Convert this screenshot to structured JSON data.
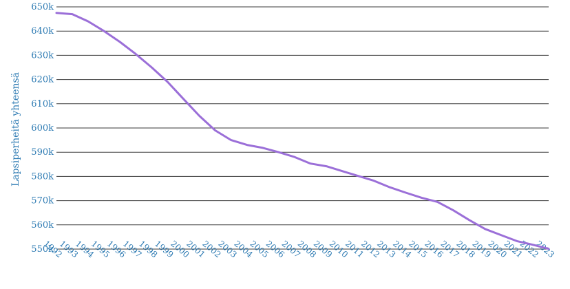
{
  "chart_data": {
    "type": "line",
    "title": "",
    "xlabel": "",
    "ylabel": "Lapsiperheitä yhteensä",
    "x": [
      1992,
      1993,
      1994,
      1995,
      1996,
      1997,
      1998,
      1999,
      2000,
      2001,
      2002,
      2003,
      2004,
      2005,
      2006,
      2007,
      2008,
      2009,
      2010,
      2011,
      2012,
      2013,
      2014,
      2015,
      2016,
      2017,
      2018,
      2019,
      2020,
      2021,
      2022,
      2023
    ],
    "series": [
      {
        "name": "",
        "color": "#9b6fd8",
        "values": [
          647500,
          647000,
          644000,
          640000,
          635500,
          630500,
          625000,
          619000,
          612000,
          605000,
          599000,
          595000,
          593000,
          591800,
          590000,
          588000,
          585300,
          584200,
          582200,
          580200,
          578200,
          575500,
          573300,
          571200,
          569500,
          566000,
          562000,
          558300,
          555800,
          553300,
          551800,
          550100
        ]
      }
    ],
    "ylim": [
      550000,
      650000
    ],
    "yticks": [
      550000,
      560000,
      570000,
      580000,
      590000,
      600000,
      610000,
      620000,
      630000,
      640000,
      650000
    ],
    "ytick_labels": [
      "550k",
      "560k",
      "570k",
      "580k",
      "590k",
      "600k",
      "610k",
      "620k",
      "630k",
      "640k",
      "650k"
    ],
    "xtick_labels": [
      "1992",
      "1993",
      "1994",
      "1995",
      "1996",
      "1997",
      "1998",
      "1999",
      "2000",
      "2001",
      "2002",
      "2003",
      "2004",
      "2005",
      "2006",
      "2007",
      "2008",
      "2009",
      "2010",
      "2011",
      "2012",
      "2013",
      "2014",
      "2015",
      "2016",
      "2017",
      "2018",
      "2019",
      "2020",
      "2021",
      "2022",
      "2023"
    ],
    "grid": "horizontal",
    "legend": "none"
  }
}
